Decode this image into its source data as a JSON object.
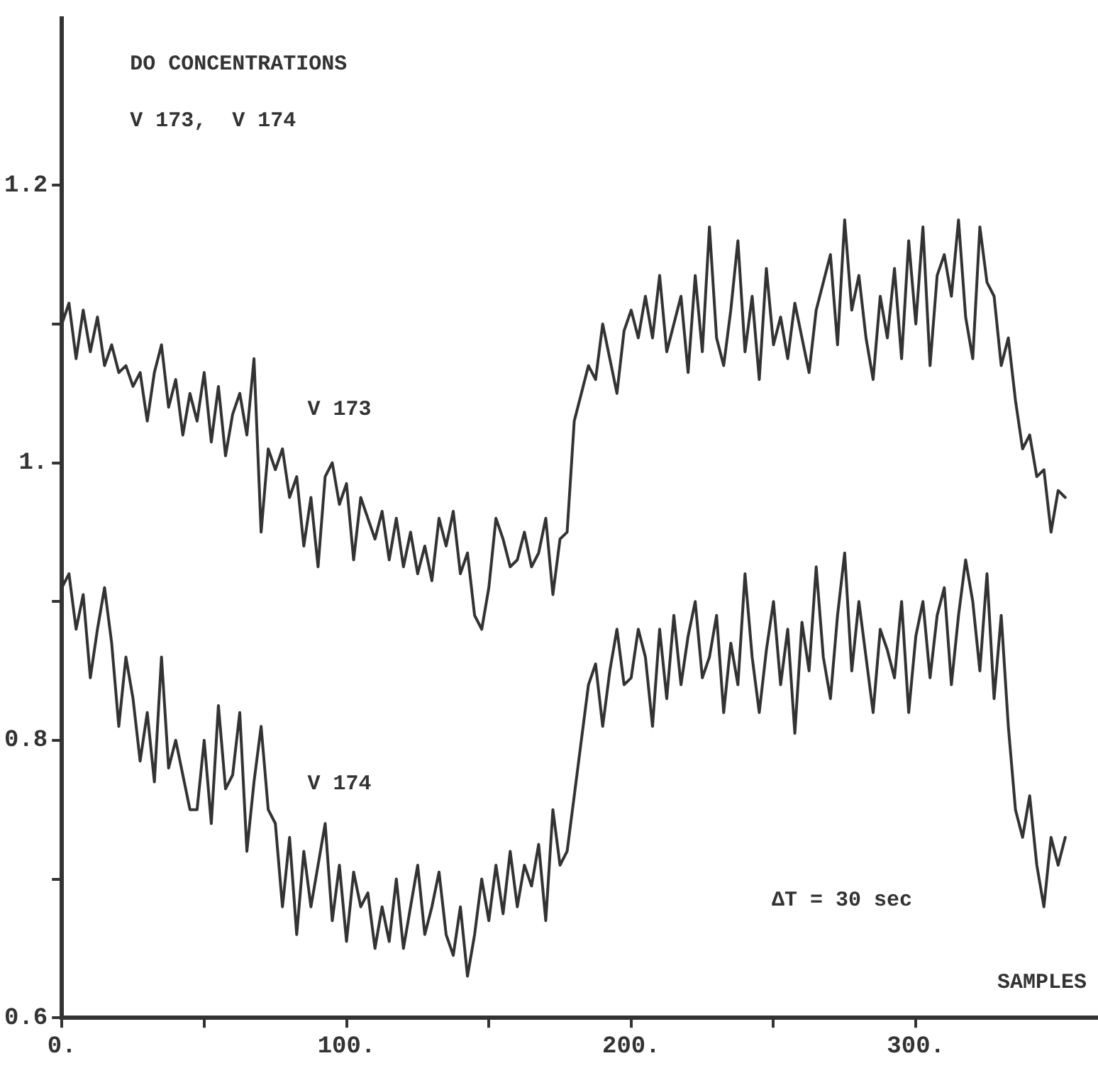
{
  "chart_data": {
    "type": "line",
    "title": "DO CONCENTRATIONS",
    "subtitle": "V 173,  V 174",
    "xlabel": "SAMPLES",
    "annotations": [
      "ΔT = 30 sec"
    ],
    "x": [
      0,
      2.5,
      5,
      7.5,
      10,
      12.5,
      15,
      17.5,
      20,
      22.5,
      25,
      27.5,
      30,
      32.5,
      35,
      37.5,
      40,
      42.5,
      45,
      47.5,
      50,
      52.5,
      55,
      57.5,
      60,
      62.5,
      65,
      67.5,
      70,
      72.5,
      75,
      77.5,
      80,
      82.5,
      85,
      87.5,
      90,
      92.5,
      95,
      97.5,
      100,
      102.5,
      105,
      107.5,
      110,
      112.5,
      115,
      117.5,
      120,
      122.5,
      125,
      127.5,
      130,
      132.5,
      135,
      137.5,
      140,
      142.5,
      145,
      147.5,
      150,
      152.5,
      155,
      157.5,
      160,
      162.5,
      165,
      167.5,
      170,
      172.5,
      175,
      177.5,
      180,
      182.5,
      185,
      187.5,
      190,
      192.5,
      195,
      197.5,
      200,
      202.5,
      205,
      207.5,
      210,
      212.5,
      215,
      217.5,
      220,
      222.5,
      225,
      227.5,
      230,
      232.5,
      235,
      237.5,
      240,
      242.5,
      245,
      247.5,
      250,
      252.5,
      255,
      257.5,
      260,
      262.5,
      265,
      267.5,
      270,
      272.5,
      275,
      277.5,
      280,
      282.5,
      285,
      287.5,
      290,
      292.5,
      295,
      297.5,
      300,
      302.5,
      305,
      307.5,
      310,
      312.5,
      315,
      317.5,
      320,
      322.5,
      325,
      327.5,
      330,
      332.5,
      335,
      337.5,
      340,
      342.5,
      345,
      347.5,
      350,
      352.5
    ],
    "series": [
      {
        "name": "V 173",
        "color": "#333333",
        "values": [
          1.1,
          1.115,
          1.075,
          1.11,
          1.08,
          1.105,
          1.07,
          1.085,
          1.065,
          1.07,
          1.055,
          1.065,
          1.03,
          1.065,
          1.085,
          1.04,
          1.06,
          1.02,
          1.05,
          1.03,
          1.065,
          1.015,
          1.055,
          1.005,
          1.035,
          1.05,
          1.02,
          1.075,
          0.95,
          1.01,
          0.995,
          1.01,
          0.975,
          0.99,
          0.94,
          0.975,
          0.925,
          0.99,
          1.0,
          0.97,
          0.985,
          0.93,
          0.975,
          0.96,
          0.945,
          0.965,
          0.93,
          0.96,
          0.925,
          0.95,
          0.92,
          0.94,
          0.915,
          0.96,
          0.94,
          0.965,
          0.92,
          0.935,
          0.89,
          0.88,
          0.91,
          0.96,
          0.945,
          0.925,
          0.93,
          0.95,
          0.925,
          0.935,
          0.96,
          0.905,
          0.945,
          0.95,
          1.03,
          1.05,
          1.07,
          1.06,
          1.1,
          1.075,
          1.05,
          1.095,
          1.11,
          1.09,
          1.12,
          1.09,
          1.135,
          1.08,
          1.1,
          1.12,
          1.065,
          1.135,
          1.08,
          1.17,
          1.09,
          1.07,
          1.11,
          1.16,
          1.08,
          1.12,
          1.06,
          1.14,
          1.085,
          1.105,
          1.075,
          1.115,
          1.09,
          1.065,
          1.11,
          1.13,
          1.15,
          1.085,
          1.175,
          1.11,
          1.135,
          1.09,
          1.06,
          1.12,
          1.09,
          1.14,
          1.075,
          1.16,
          1.1,
          1.17,
          1.07,
          1.135,
          1.15,
          1.12,
          1.175,
          1.105,
          1.075,
          1.17,
          1.13,
          1.12,
          1.07,
          1.09,
          1.045,
          1.01,
          1.02,
          0.99,
          0.995,
          0.95,
          0.98,
          0.975
        ]
      },
      {
        "name": "V 174",
        "color": "#333333",
        "values": [
          0.91,
          0.92,
          0.88,
          0.905,
          0.845,
          0.88,
          0.91,
          0.87,
          0.81,
          0.86,
          0.83,
          0.785,
          0.82,
          0.77,
          0.86,
          0.78,
          0.8,
          0.775,
          0.75,
          0.75,
          0.8,
          0.74,
          0.825,
          0.765,
          0.775,
          0.82,
          0.72,
          0.77,
          0.81,
          0.75,
          0.74,
          0.68,
          0.73,
          0.66,
          0.72,
          0.68,
          0.71,
          0.74,
          0.67,
          0.71,
          0.655,
          0.705,
          0.68,
          0.69,
          0.65,
          0.68,
          0.655,
          0.7,
          0.65,
          0.68,
          0.71,
          0.66,
          0.68,
          0.705,
          0.66,
          0.645,
          0.68,
          0.63,
          0.66,
          0.7,
          0.67,
          0.71,
          0.675,
          0.72,
          0.68,
          0.71,
          0.695,
          0.725,
          0.67,
          0.75,
          0.71,
          0.72,
          0.76,
          0.8,
          0.84,
          0.855,
          0.81,
          0.85,
          0.88,
          0.84,
          0.845,
          0.88,
          0.86,
          0.81,
          0.88,
          0.83,
          0.89,
          0.84,
          0.875,
          0.9,
          0.845,
          0.86,
          0.89,
          0.82,
          0.87,
          0.84,
          0.92,
          0.86,
          0.82,
          0.865,
          0.9,
          0.84,
          0.88,
          0.805,
          0.885,
          0.85,
          0.925,
          0.86,
          0.83,
          0.89,
          0.935,
          0.85,
          0.9,
          0.86,
          0.82,
          0.88,
          0.865,
          0.845,
          0.9,
          0.82,
          0.875,
          0.9,
          0.845,
          0.89,
          0.91,
          0.84,
          0.89,
          0.93,
          0.9,
          0.85,
          0.92,
          0.83,
          0.89,
          0.81,
          0.75,
          0.73,
          0.76,
          0.71,
          0.68,
          0.73,
          0.71,
          0.73
        ]
      }
    ],
    "xlim": [
      0,
      364
    ],
    "xticks": [
      {
        "value": 0,
        "label": "0."
      },
      {
        "value": 50,
        "label": null
      },
      {
        "value": 100,
        "label": "100."
      },
      {
        "value": 150,
        "label": null
      },
      {
        "value": 200,
        "label": "200."
      },
      {
        "value": 250,
        "label": null
      },
      {
        "value": 300,
        "label": "300."
      }
    ],
    "ylim": [
      0.6,
      1.32
    ],
    "yticks": [
      0.6,
      {
        "value": 0.7,
        "label": null
      },
      0.8,
      {
        "value": 0.9,
        "label": null
      },
      {
        "value": 1,
        "label": "1."
      },
      {
        "value": 1.1,
        "label": null
      },
      1.2
    ],
    "grid": false,
    "legend": false,
    "marker": "none",
    "line_style": "solid"
  }
}
